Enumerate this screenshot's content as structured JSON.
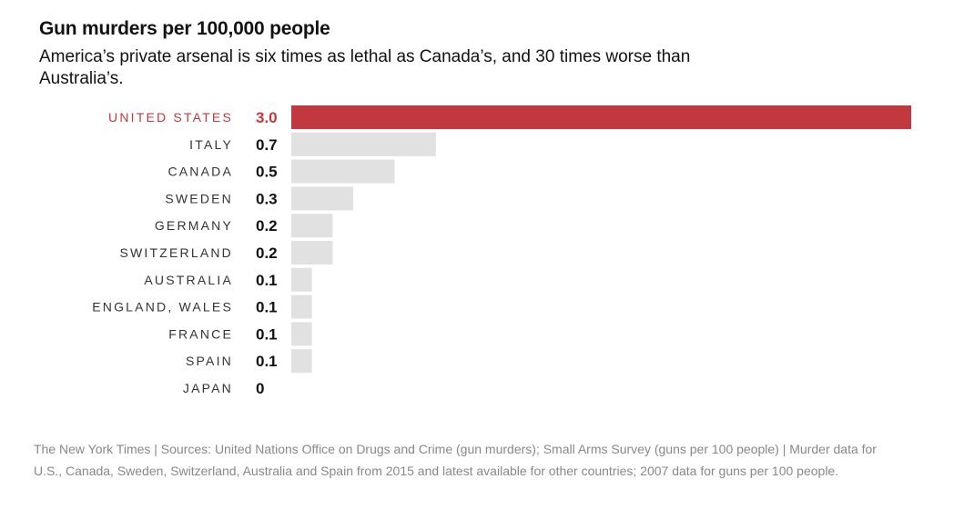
{
  "header": {
    "title": "Gun murders per 100,000 people",
    "subtitle": "America’s private arsenal is six times as lethal as Canada’s, and 30 times worse than Australia’s."
  },
  "chart_data": {
    "type": "bar",
    "orientation": "horizontal",
    "title": "Gun murders per 100,000 people",
    "categories": [
      "UNITED STATES",
      "ITALY",
      "CANADA",
      "SWEDEN",
      "GERMANY",
      "SWITZERLAND",
      "AUSTRALIA",
      "ENGLAND, WALES",
      "FRANCE",
      "SPAIN",
      "JAPAN"
    ],
    "values": [
      3.0,
      0.7,
      0.5,
      0.3,
      0.2,
      0.2,
      0.1,
      0.1,
      0.1,
      0.1,
      0
    ],
    "value_labels": [
      "3.0",
      "0.7",
      "0.5",
      "0.3",
      "0.2",
      "0.2",
      "0.1",
      "0.1",
      "0.1",
      "0.1",
      "0"
    ],
    "xlim": [
      0,
      3.0
    ],
    "grid": false,
    "highlight_index": 0,
    "colors": {
      "highlight": "#c1393f",
      "default": "#e1e1e1"
    }
  },
  "footer": {
    "source": "The New York Times | Sources: United Nations Office on Drugs and Crime (gun murders); Small Arms Survey (guns per 100 people) | Murder data for U.S., Canada, Sweden, Switzerland, Australia and Spain from 2015 and latest available for other countries; 2007 data for guns per 100 people."
  }
}
